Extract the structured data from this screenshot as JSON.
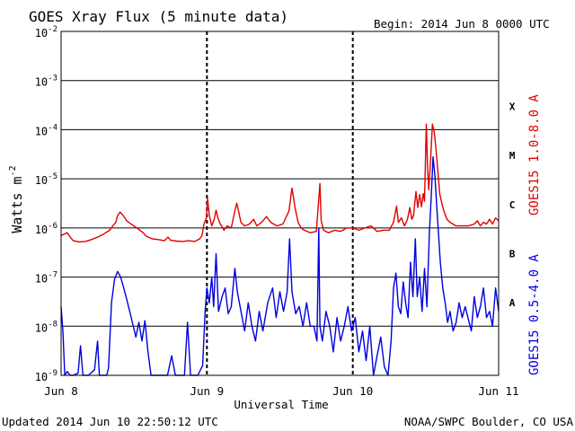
{
  "chart_data": {
    "type": "line",
    "title": "GOES Xray Flux (5 minute data)",
    "begin_label": "Begin:  2014 Jun 8 0000 UTC",
    "xlabel": "Universal Time",
    "ylabel": "Watts m",
    "ylabel_superscript": "-2",
    "y_scale": "log",
    "ylim": [
      1e-09,
      0.01
    ],
    "y_ticks": [
      {
        "value": 0.01,
        "base": "10",
        "exp": "-2"
      },
      {
        "value": 0.001,
        "base": "10",
        "exp": "-3"
      },
      {
        "value": 0.0001,
        "base": "10",
        "exp": "-4"
      },
      {
        "value": 1e-05,
        "base": "10",
        "exp": "-5"
      },
      {
        "value": 1e-06,
        "base": "10",
        "exp": "-6"
      },
      {
        "value": 1e-07,
        "base": "10",
        "exp": "-7"
      },
      {
        "value": 1e-08,
        "base": "10",
        "exp": "-8"
      },
      {
        "value": 1e-09,
        "base": "10",
        "exp": "-9"
      }
    ],
    "xlim": [
      0,
      72
    ],
    "x_unit": "hours since 2014 Jun 8 0000 UTC",
    "x_ticks": [
      {
        "value": 0,
        "label": "Jun 8"
      },
      {
        "value": 24,
        "label": "Jun 9"
      },
      {
        "value": 48,
        "label": "Jun 10"
      },
      {
        "value": 72,
        "label": "Jun 11"
      }
    ],
    "grid": "horizontal lines at each decade; dashed verticals at day boundaries",
    "flare_classes": [
      {
        "label": "X",
        "value": 0.0003
      },
      {
        "label": "M",
        "value": 3e-05
      },
      {
        "label": "C",
        "value": 3e-06
      },
      {
        "label": "B",
        "value": 3e-07
      },
      {
        "label": "A",
        "value": 3e-08
      }
    ],
    "series": [
      {
        "name": "GOES15 1.0-8.0 A",
        "color": "#e00000",
        "points": [
          [
            0,
            7e-07
          ],
          [
            0.5,
            7.5e-07
          ],
          [
            1,
            8e-07
          ],
          [
            1.5,
            6.5e-07
          ],
          [
            2,
            5.5e-07
          ],
          [
            3,
            5.2e-07
          ],
          [
            4,
            5.3e-07
          ],
          [
            5,
            5.8e-07
          ],
          [
            6,
            6.5e-07
          ],
          [
            7,
            7.5e-07
          ],
          [
            8,
            9e-07
          ],
          [
            8.5,
            1.1e-06
          ],
          [
            9,
            1.3e-06
          ],
          [
            9.3,
            1.8e-06
          ],
          [
            9.7,
            2.1e-06
          ],
          [
            10.2,
            1.8e-06
          ],
          [
            10.8,
            1.4e-06
          ],
          [
            11.5,
            1.2e-06
          ],
          [
            12.5,
            1e-06
          ],
          [
            13.5,
            8e-07
          ],
          [
            14,
            6.8e-07
          ],
          [
            15,
            6e-07
          ],
          [
            16,
            5.8e-07
          ],
          [
            17,
            5.5e-07
          ],
          [
            17.6,
            6.5e-07
          ],
          [
            18,
            5.6e-07
          ],
          [
            19,
            5.4e-07
          ],
          [
            20,
            5.3e-07
          ],
          [
            21,
            5.5e-07
          ],
          [
            22,
            5.3e-07
          ],
          [
            22.8,
            6e-07
          ],
          [
            23.2,
            7e-07
          ],
          [
            23.5,
            1.2e-06
          ],
          [
            23.9,
            1.6e-06
          ],
          [
            24.1,
            4e-06
          ],
          [
            24.4,
            1.8e-06
          ],
          [
            24.8,
            1.1e-06
          ],
          [
            25.2,
            1.5e-06
          ],
          [
            25.5,
            2.3e-06
          ],
          [
            25.8,
            1.6e-06
          ],
          [
            26.2,
            1.2e-06
          ],
          [
            26.8,
            9e-07
          ],
          [
            27.3,
            1.1e-06
          ],
          [
            28,
            1e-06
          ],
          [
            28.6,
            2.2e-06
          ],
          [
            28.9,
            3.2e-06
          ],
          [
            29.2,
            2.2e-06
          ],
          [
            29.6,
            1.3e-06
          ],
          [
            30.2,
            1.1e-06
          ],
          [
            31,
            1.2e-06
          ],
          [
            31.7,
            1.5e-06
          ],
          [
            32.2,
            1.1e-06
          ],
          [
            33,
            1.3e-06
          ],
          [
            33.8,
            1.7e-06
          ],
          [
            34.5,
            1.3e-06
          ],
          [
            35.5,
            1.1e-06
          ],
          [
            36.5,
            1.2e-06
          ],
          [
            37.5,
            2.2e-06
          ],
          [
            38,
            6.5e-06
          ],
          [
            38.5,
            2.6e-06
          ],
          [
            39,
            1.3e-06
          ],
          [
            39.5,
            1e-06
          ],
          [
            40,
            9e-07
          ],
          [
            41,
            8e-07
          ],
          [
            42,
            8.5e-07
          ],
          [
            42.6,
            8e-06
          ],
          [
            42.8,
            1.4e-06
          ],
          [
            43.2,
            9e-07
          ],
          [
            44,
            8e-07
          ],
          [
            45,
            9e-07
          ],
          [
            46,
            8.5e-07
          ],
          [
            47,
            1e-06
          ],
          [
            48,
            1e-06
          ],
          [
            49,
            9e-07
          ],
          [
            50,
            1e-06
          ],
          [
            51,
            1.1e-06
          ],
          [
            52,
            8.5e-07
          ],
          [
            53,
            9e-07
          ],
          [
            54,
            9e-07
          ],
          [
            54.7,
            1.3e-06
          ],
          [
            55.2,
            2.8e-06
          ],
          [
            55.5,
            1.3e-06
          ],
          [
            56,
            1.6e-06
          ],
          [
            56.5,
            1.1e-06
          ],
          [
            57,
            1.5e-06
          ],
          [
            57.4,
            2.6e-06
          ],
          [
            57.7,
            1.5e-06
          ],
          [
            58,
            1.8e-06
          ],
          [
            58.4,
            5.5e-06
          ],
          [
            58.7,
            2.6e-06
          ],
          [
            59,
            4.8e-06
          ],
          [
            59.3,
            2.7e-06
          ],
          [
            59.6,
            5e-06
          ],
          [
            59.8,
            3.5e-06
          ],
          [
            60.1,
            0.00013
          ],
          [
            60.3,
            1.7e-05
          ],
          [
            60.5,
            6e-06
          ],
          [
            60.8,
            2.3e-05
          ],
          [
            61.1,
            0.00013
          ],
          [
            61.4,
            9e-05
          ],
          [
            61.7,
            4e-05
          ],
          [
            62,
            1.4e-05
          ],
          [
            62.3,
            5e-06
          ],
          [
            62.7,
            3e-06
          ],
          [
            63,
            2.2e-06
          ],
          [
            63.5,
            1.5e-06
          ],
          [
            64,
            1.3e-06
          ],
          [
            65,
            1.1e-06
          ],
          [
            66,
            1.1e-06
          ],
          [
            67,
            1.1e-06
          ],
          [
            68,
            1.2e-06
          ],
          [
            68.5,
            1.4e-06
          ],
          [
            69,
            1.1e-06
          ],
          [
            69.5,
            1.3e-06
          ],
          [
            70,
            1.2e-06
          ],
          [
            70.5,
            1.5e-06
          ],
          [
            71,
            1.2e-06
          ],
          [
            71.5,
            1.6e-06
          ],
          [
            72,
            1.4e-06
          ]
        ]
      },
      {
        "name": "GOES15 0.5-4.0 A",
        "color": "#0000e0",
        "points": [
          [
            0,
            2.5e-08
          ],
          [
            0.3,
            8e-09
          ],
          [
            0.6,
            1e-09
          ],
          [
            1,
            1.2e-09
          ],
          [
            1.5,
            1e-09
          ],
          [
            2,
            1e-09
          ],
          [
            2.8,
            1.1e-09
          ],
          [
            3.2,
            4e-09
          ],
          [
            3.6,
            1e-09
          ],
          [
            4.5,
            1e-09
          ],
          [
            5.5,
            1.3e-09
          ],
          [
            6,
            5e-09
          ],
          [
            6.3,
            1e-09
          ],
          [
            7.5,
            1e-09
          ],
          [
            7.8,
            1.4e-09
          ],
          [
            8.3,
            3e-08
          ],
          [
            8.8,
            9e-08
          ],
          [
            9.3,
            1.3e-07
          ],
          [
            9.8,
            1e-07
          ],
          [
            10.3,
            6e-08
          ],
          [
            10.8,
            3.5e-08
          ],
          [
            11.3,
            2e-08
          ],
          [
            11.8,
            1.1e-08
          ],
          [
            12.3,
            6e-09
          ],
          [
            12.8,
            1.2e-08
          ],
          [
            13.3,
            5e-09
          ],
          [
            13.8,
            1.3e-08
          ],
          [
            14.3,
            3e-09
          ],
          [
            14.8,
            1e-09
          ],
          [
            16,
            1e-09
          ],
          [
            17.5,
            1e-09
          ],
          [
            18.2,
            2.5e-09
          ],
          [
            18.8,
            1e-09
          ],
          [
            19.5,
            1e-09
          ],
          [
            20.3,
            1e-09
          ],
          [
            20.8,
            1.2e-08
          ],
          [
            21.3,
            1e-09
          ],
          [
            22.5,
            1e-09
          ],
          [
            23.3,
            1.6e-09
          ],
          [
            23.7,
            2e-08
          ],
          [
            24,
            6e-08
          ],
          [
            24.4,
            3e-08
          ],
          [
            24.8,
            1e-07
          ],
          [
            25.1,
            2.5e-08
          ],
          [
            25.5,
            3e-07
          ],
          [
            25.9,
            2e-08
          ],
          [
            26.5,
            4e-08
          ],
          [
            27,
            6e-08
          ],
          [
            27.5,
            1.8e-08
          ],
          [
            28,
            2.5e-08
          ],
          [
            28.6,
            1.5e-07
          ],
          [
            29,
            5e-08
          ],
          [
            29.6,
            2e-08
          ],
          [
            30.2,
            8e-09
          ],
          [
            30.8,
            3e-08
          ],
          [
            31.4,
            1e-08
          ],
          [
            32,
            5e-09
          ],
          [
            32.6,
            2e-08
          ],
          [
            33.2,
            8e-09
          ],
          [
            34,
            3e-08
          ],
          [
            34.8,
            6e-08
          ],
          [
            35.4,
            1.5e-08
          ],
          [
            36,
            5e-08
          ],
          [
            36.6,
            2e-08
          ],
          [
            37.2,
            5e-08
          ],
          [
            37.6,
            6e-07
          ],
          [
            38,
            5e-08
          ],
          [
            38.6,
            1.8e-08
          ],
          [
            39.2,
            2.5e-08
          ],
          [
            39.8,
            1e-08
          ],
          [
            40.4,
            3e-08
          ],
          [
            41,
            1e-08
          ],
          [
            41.6,
            1e-08
          ],
          [
            42.1,
            5e-09
          ],
          [
            42.4,
            1e-06
          ],
          [
            42.6,
            1e-08
          ],
          [
            43,
            5e-09
          ],
          [
            43.6,
            2e-08
          ],
          [
            44.2,
            1e-08
          ],
          [
            44.8,
            3e-09
          ],
          [
            45.4,
            1.5e-08
          ],
          [
            46,
            5e-09
          ],
          [
            46.6,
            1e-08
          ],
          [
            47.2,
            2.5e-08
          ],
          [
            47.8,
            8e-09
          ],
          [
            48.4,
            1.5e-08
          ],
          [
            49,
            3e-09
          ],
          [
            49.6,
            8e-09
          ],
          [
            50.2,
            2e-09
          ],
          [
            50.8,
            1e-08
          ],
          [
            51.4,
            1e-09
          ],
          [
            52,
            2.5e-09
          ],
          [
            52.6,
            6e-09
          ],
          [
            53.2,
            1.5e-09
          ],
          [
            53.8,
            1e-09
          ],
          [
            54.3,
            5e-09
          ],
          [
            54.7,
            6e-08
          ],
          [
            55.1,
            1.2e-07
          ],
          [
            55.5,
            2.5e-08
          ],
          [
            55.9,
            1.8e-08
          ],
          [
            56.3,
            8e-08
          ],
          [
            56.7,
            3e-08
          ],
          [
            57.1,
            1.5e-08
          ],
          [
            57.5,
            2e-07
          ],
          [
            57.9,
            4e-08
          ],
          [
            58.3,
            6e-07
          ],
          [
            58.6,
            4e-08
          ],
          [
            59,
            1e-07
          ],
          [
            59.4,
            2e-08
          ],
          [
            59.8,
            1.5e-07
          ],
          [
            60.2,
            2.5e-08
          ],
          [
            60.6,
            8e-07
          ],
          [
            60.9,
            4e-06
          ],
          [
            61.2,
            2.8e-05
          ],
          [
            61.5,
            1.2e-05
          ],
          [
            61.8,
            3e-06
          ],
          [
            62.1,
            8e-07
          ],
          [
            62.4,
            2e-07
          ],
          [
            62.8,
            6e-08
          ],
          [
            63.2,
            3e-08
          ],
          [
            63.6,
            1.2e-08
          ],
          [
            64,
            2e-08
          ],
          [
            64.5,
            8e-09
          ],
          [
            65,
            1.2e-08
          ],
          [
            65.5,
            3e-08
          ],
          [
            66,
            1.5e-08
          ],
          [
            66.5,
            2.5e-08
          ],
          [
            67,
            1.4e-08
          ],
          [
            67.5,
            8e-09
          ],
          [
            68,
            4e-08
          ],
          [
            68.5,
            1.5e-08
          ],
          [
            69,
            2.5e-08
          ],
          [
            69.5,
            6e-08
          ],
          [
            70,
            1.5e-08
          ],
          [
            70.5,
            2e-08
          ],
          [
            71,
            1e-08
          ],
          [
            71.5,
            6e-08
          ],
          [
            72,
            2e-08
          ]
        ]
      }
    ],
    "footer_left": "Updated 2014 Jun 10 22:50:12 UTC",
    "footer_right": "NOAA/SWPC Boulder, CO USA"
  }
}
